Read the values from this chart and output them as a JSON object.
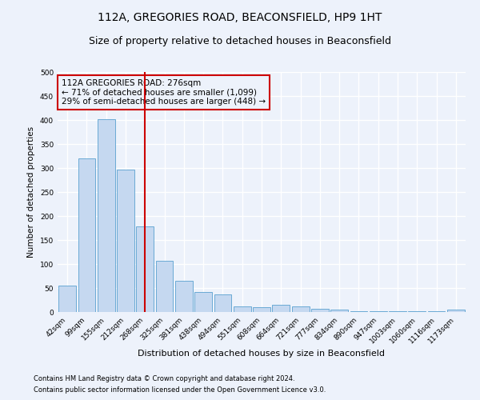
{
  "title1": "112A, GREGORIES ROAD, BEACONSFIELD, HP9 1HT",
  "title2": "Size of property relative to detached houses in Beaconsfield",
  "xlabel": "Distribution of detached houses by size in Beaconsfield",
  "ylabel": "Number of detached properties",
  "footer1": "Contains HM Land Registry data © Crown copyright and database right 2024.",
  "footer2": "Contains public sector information licensed under the Open Government Licence v3.0.",
  "bar_labels": [
    "42sqm",
    "99sqm",
    "155sqm",
    "212sqm",
    "268sqm",
    "325sqm",
    "381sqm",
    "438sqm",
    "494sqm",
    "551sqm",
    "608sqm",
    "664sqm",
    "721sqm",
    "777sqm",
    "834sqm",
    "890sqm",
    "947sqm",
    "1003sqm",
    "1060sqm",
    "1116sqm",
    "1173sqm"
  ],
  "bar_values": [
    55,
    320,
    401,
    296,
    178,
    107,
    65,
    42,
    37,
    12,
    10,
    15,
    11,
    7,
    5,
    2,
    1,
    1,
    1,
    1,
    5
  ],
  "bar_color": "#c5d8f0",
  "bar_edge_color": "#6aaad4",
  "vline_x": 4.0,
  "vline_color": "#cc0000",
  "annotation_text": "112A GREGORIES ROAD: 276sqm\n← 71% of detached houses are smaller (1,099)\n29% of semi-detached houses are larger (448) →",
  "annotation_box_color": "#cc0000",
  "ylim": [
    0,
    500
  ],
  "yticks": [
    0,
    50,
    100,
    150,
    200,
    250,
    300,
    350,
    400,
    450,
    500
  ],
  "bg_color": "#edf2fb",
  "grid_color": "#ffffff",
  "title1_fontsize": 10,
  "title2_fontsize": 9,
  "annot_fontsize": 7.5,
  "xlabel_fontsize": 8,
  "ylabel_fontsize": 7.5,
  "tick_fontsize": 6.5,
  "footer_fontsize": 6
}
